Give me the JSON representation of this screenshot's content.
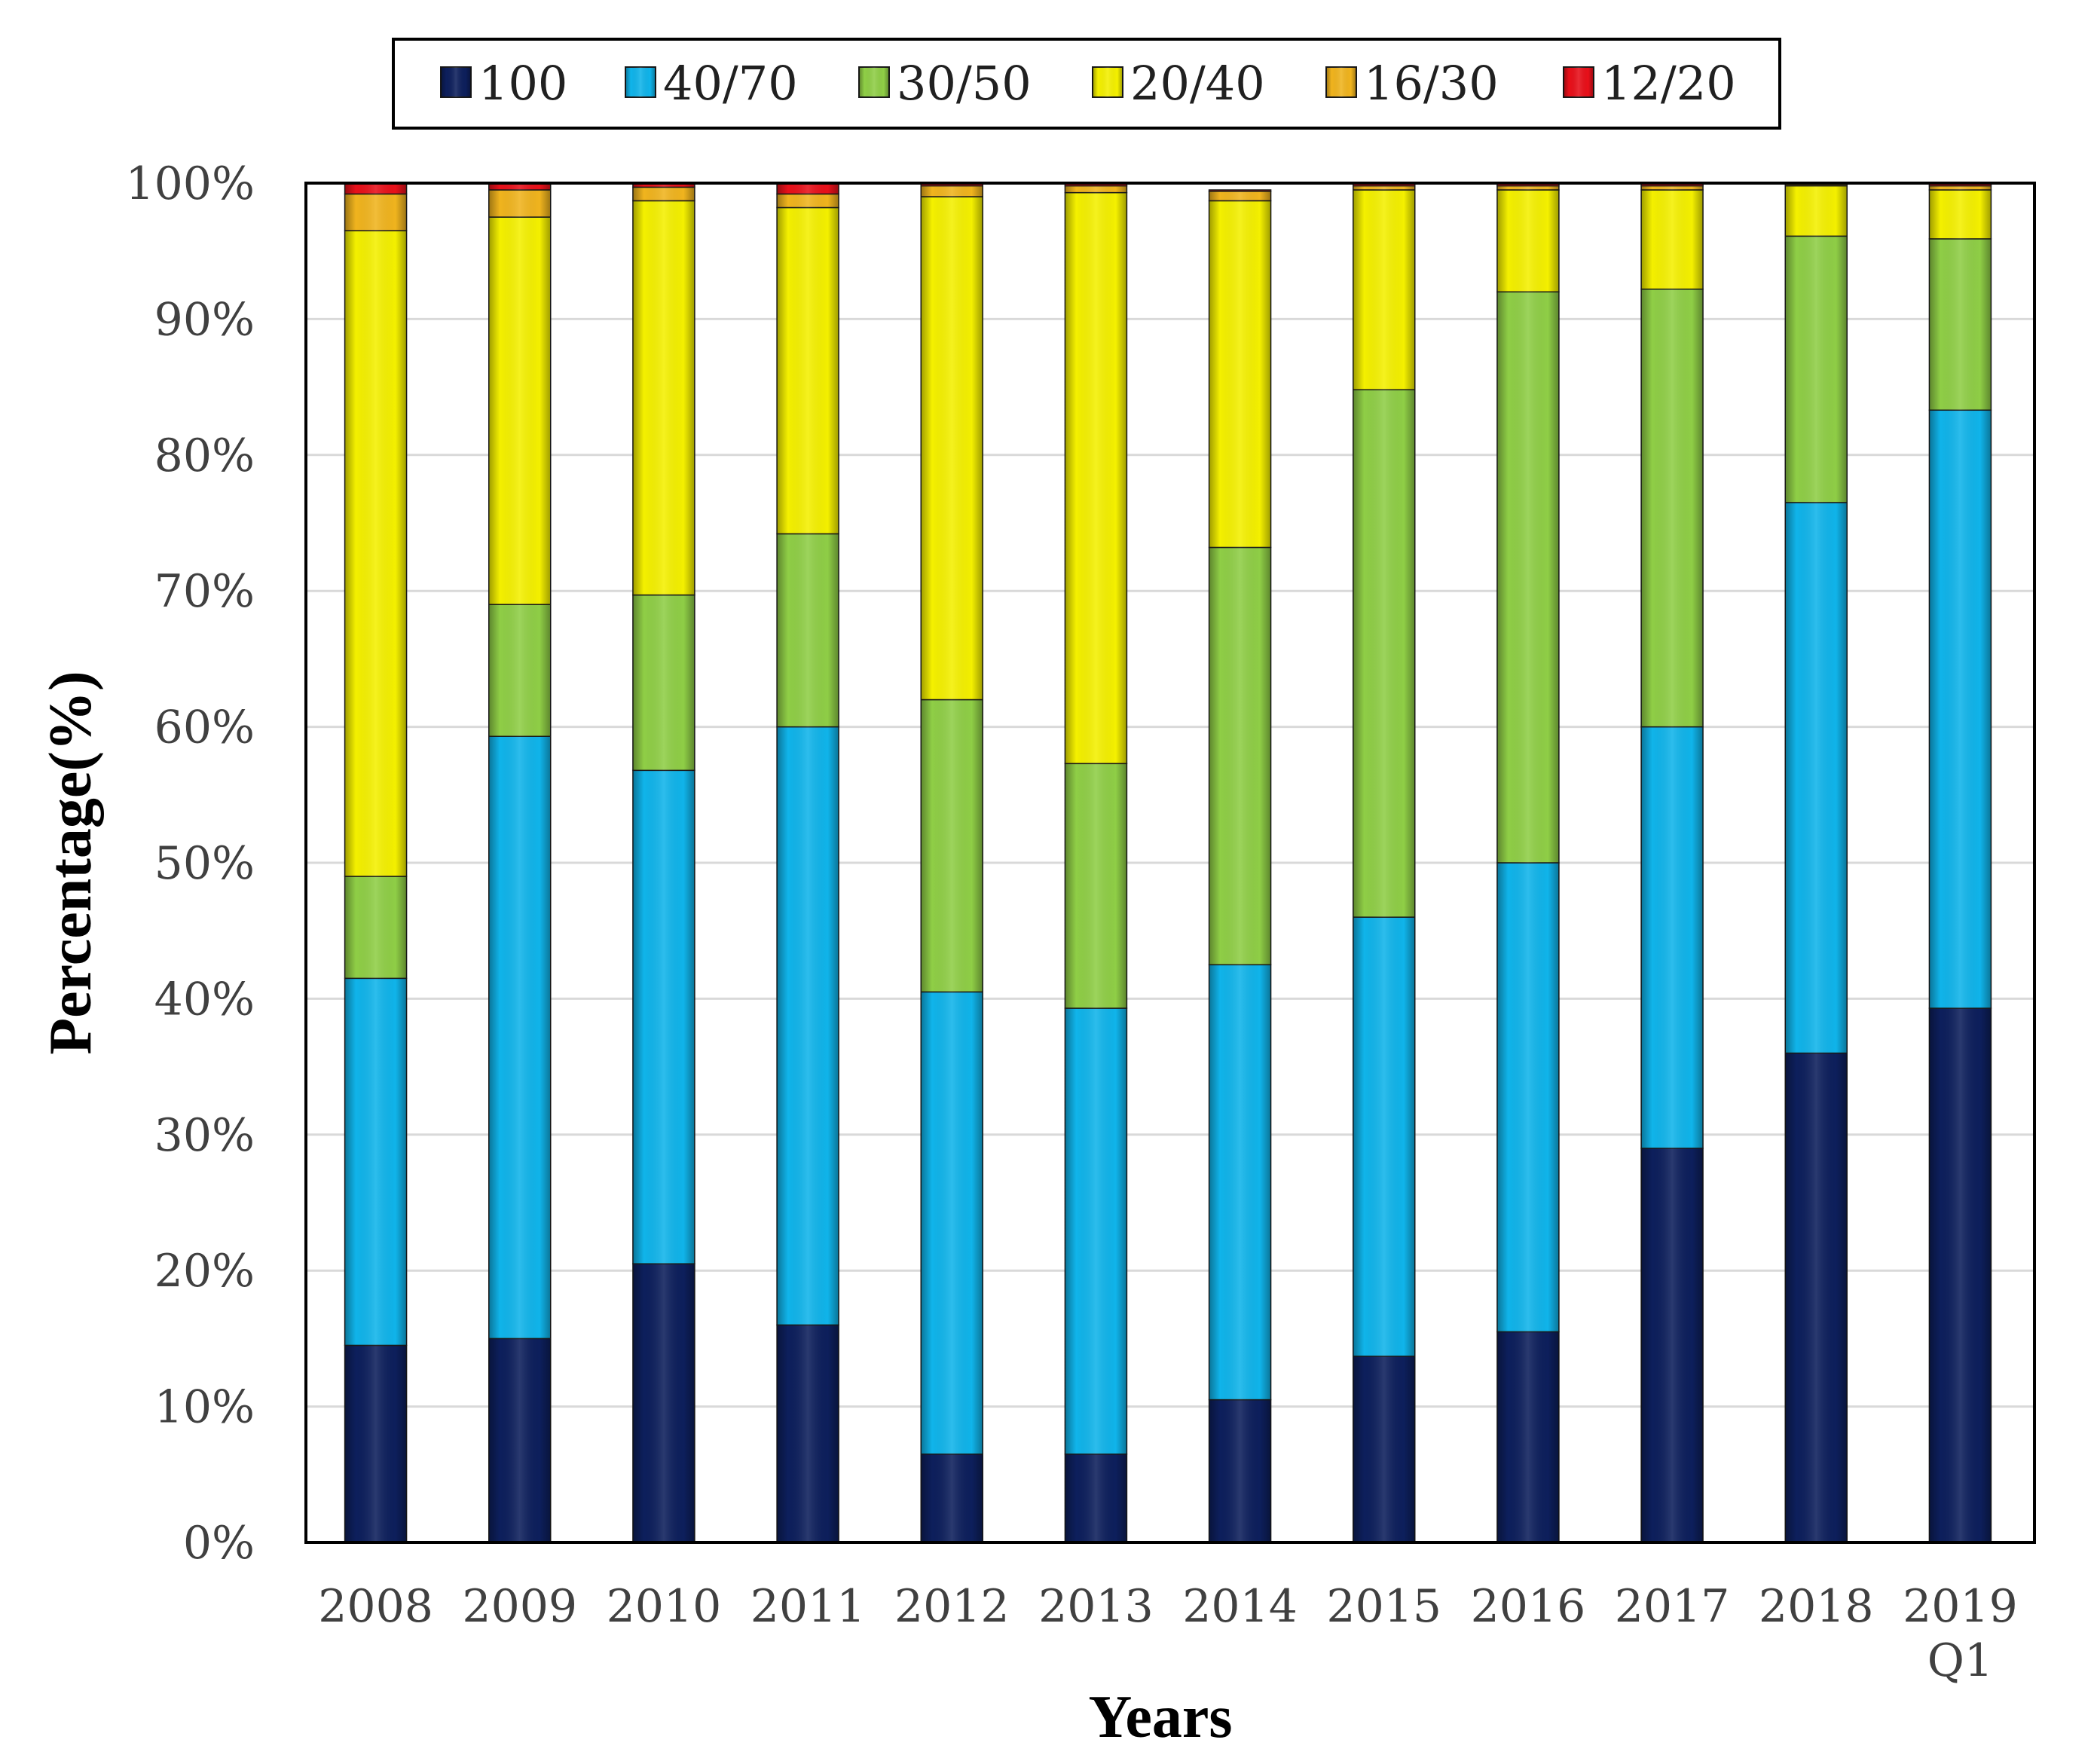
{
  "chart_data": {
    "type": "bar",
    "stacked": true,
    "normalized": true,
    "title": "",
    "xlabel": "Years",
    "ylabel": "Percentage(%)",
    "ylim": [
      0,
      100
    ],
    "yticks": [
      0,
      10,
      20,
      30,
      40,
      50,
      60,
      70,
      80,
      90,
      100
    ],
    "ytick_suffix": "%",
    "grid": "horizontal",
    "legend_position": "top",
    "categories": [
      "2008",
      "2009",
      "2010",
      "2011",
      "2012",
      "2013",
      "2014",
      "2015",
      "2016",
      "2017",
      "2018",
      "2019 Q1"
    ],
    "series": [
      {
        "name": "100",
        "color": "#0d1f5c",
        "values": [
          14.5,
          15.0,
          20.5,
          16.0,
          6.5,
          6.5,
          10.5,
          13.7,
          15.5,
          29.0,
          36.0,
          39.3
        ]
      },
      {
        "name": "40/70",
        "color": "#10b4ea",
        "values": [
          27.0,
          44.3,
          36.3,
          44.0,
          34.0,
          32.8,
          32.0,
          32.3,
          34.5,
          31.0,
          40.5,
          44.0
        ]
      },
      {
        "name": "30/50",
        "color": "#8fce46",
        "values": [
          7.5,
          9.7,
          12.9,
          14.2,
          21.5,
          18.0,
          30.7,
          38.8,
          42.0,
          32.2,
          19.6,
          12.6
        ]
      },
      {
        "name": "20/40",
        "color": "#f4f000",
        "values": [
          47.5,
          28.5,
          29.0,
          24.0,
          37.0,
          42.0,
          25.5,
          14.7,
          7.5,
          7.3,
          3.7,
          3.6
        ]
      },
      {
        "name": "16/30",
        "color": "#f0b41e",
        "values": [
          2.7,
          2.0,
          1.0,
          1.0,
          0.8,
          0.5,
          0.7,
          0.3,
          0.3,
          0.3,
          0.1,
          0.3
        ]
      },
      {
        "name": "12/20",
        "color": "#e8101a",
        "values": [
          0.8,
          0.5,
          0.3,
          0.8,
          0.2,
          0.2,
          0.1,
          0.2,
          0.2,
          0.2,
          0.1,
          0.2
        ]
      }
    ]
  }
}
